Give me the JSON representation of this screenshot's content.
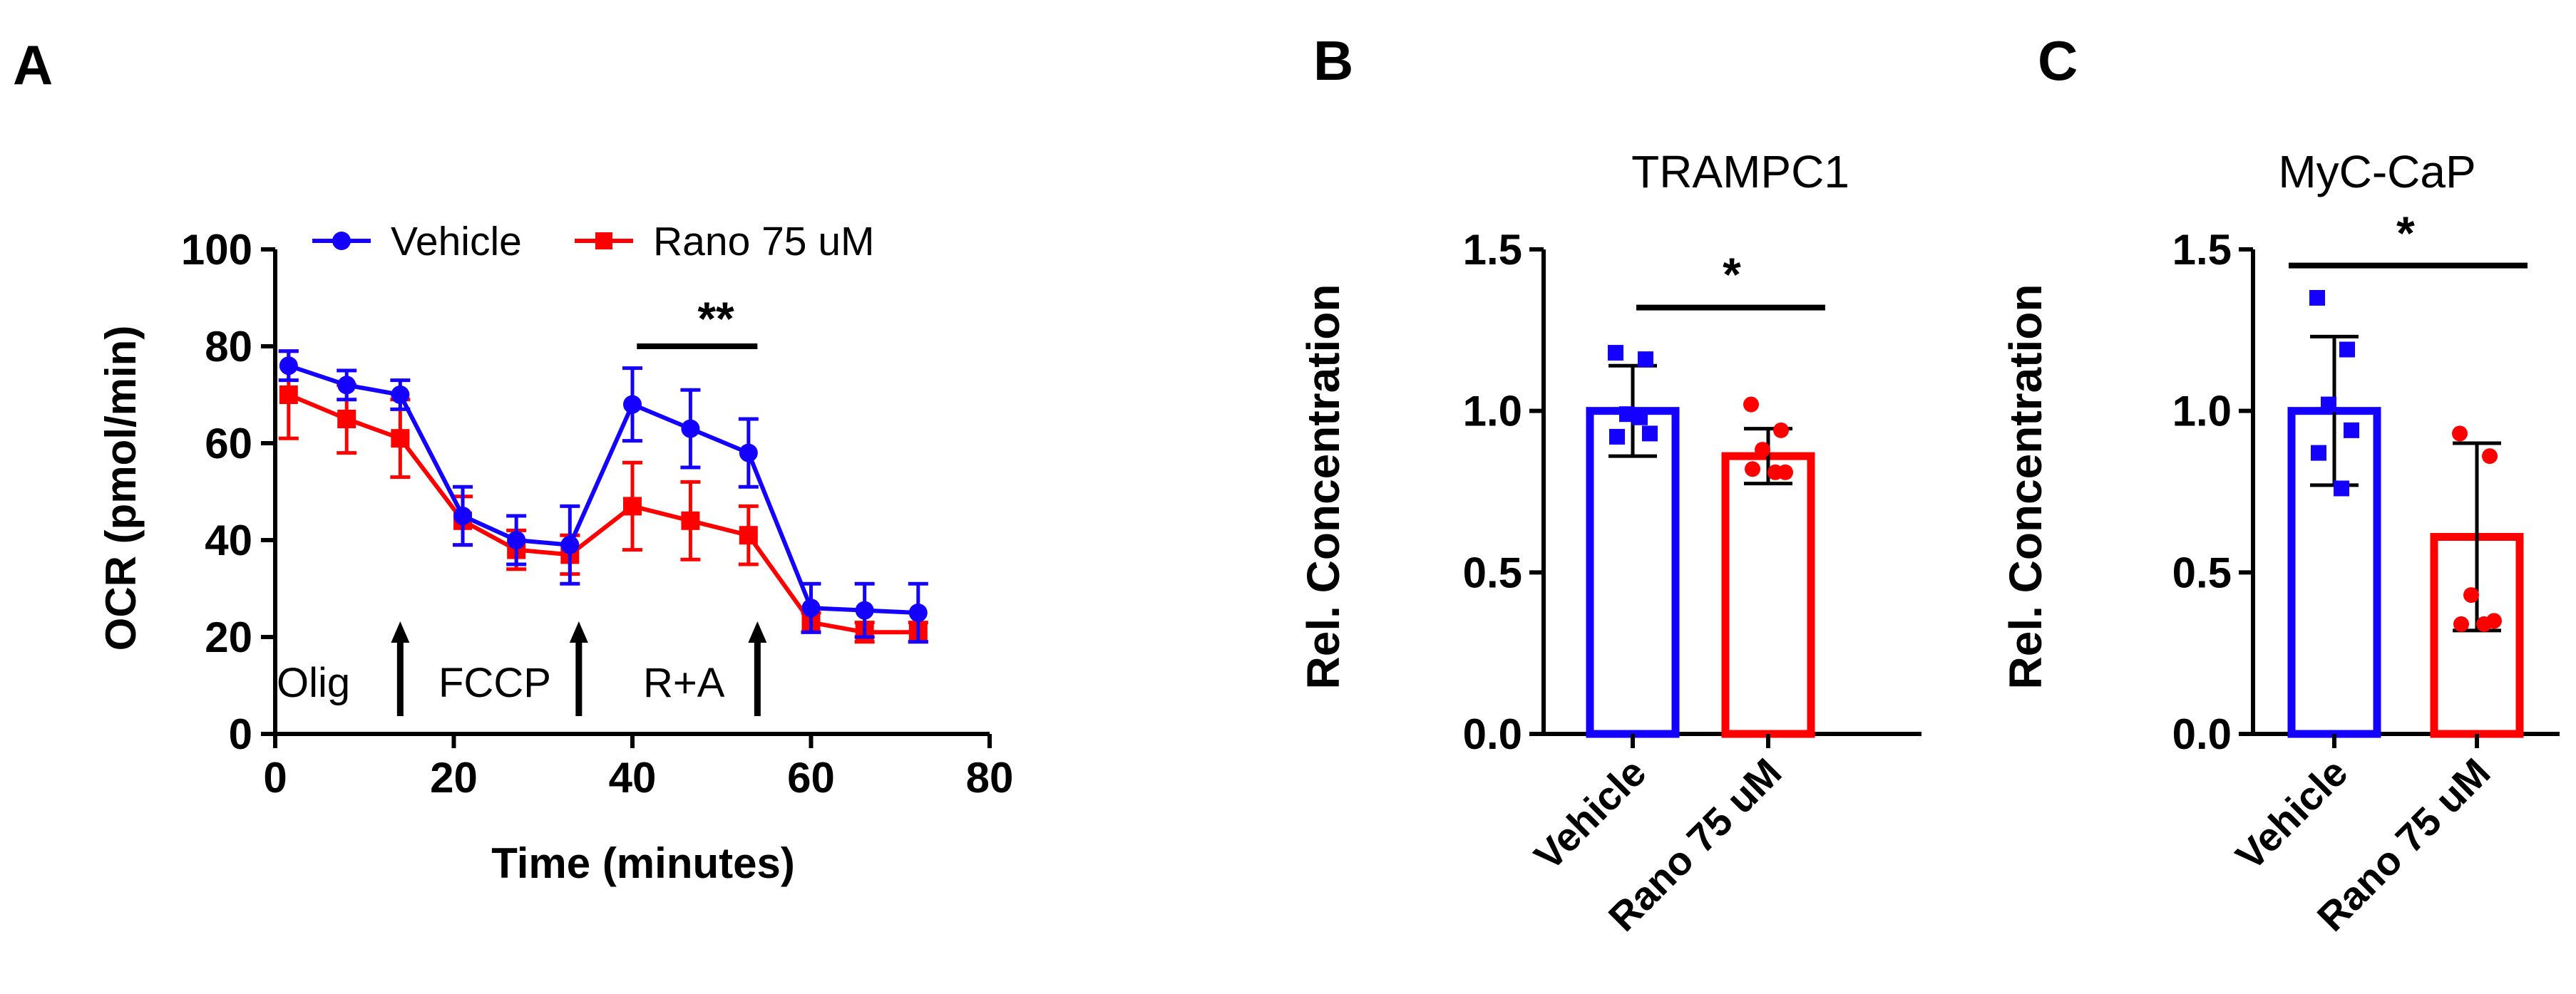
{
  "panels": {
    "a": {
      "letter": "A"
    },
    "b": {
      "letter": "B"
    },
    "c": {
      "letter": "C"
    }
  },
  "colors": {
    "vehicle": "#1400ff",
    "rano": "#ff0000",
    "axis": "#000000"
  },
  "chart_data": [
    {
      "id": "A",
      "type": "line",
      "xlabel": "Time (minutes)",
      "ylabel": "OCR (pmol/min)",
      "xlim": [
        0,
        80
      ],
      "ylim": [
        0,
        100
      ],
      "xticks": [
        "0",
        "20",
        "40",
        "60",
        "80"
      ],
      "yticks": [
        "0",
        "20",
        "40",
        "60",
        "80",
        "100"
      ],
      "legend": "top",
      "series": [
        {
          "name": "Vehicle",
          "color": "#1400ff",
          "marker": "circle",
          "x": [
            1.5,
            8,
            14,
            21,
            27,
            33,
            40,
            46.5,
            53,
            60,
            66,
            72
          ],
          "y": [
            76,
            72,
            70,
            45,
            40,
            39,
            68,
            63,
            58,
            26,
            25.5,
            25
          ],
          "err": [
            3,
            3,
            3,
            6,
            5,
            8,
            7.5,
            8,
            7,
            5,
            5.5,
            6
          ]
        },
        {
          "name": "Rano 75 uM",
          "color": "#ff0000",
          "marker": "square",
          "x": [
            1.5,
            8,
            14,
            21,
            27,
            33,
            40,
            46.5,
            53,
            60,
            66,
            72
          ],
          "y": [
            70,
            65,
            61,
            44,
            38,
            37,
            47,
            44,
            41,
            23,
            21,
            21
          ],
          "err": [
            9,
            7,
            8,
            5,
            4,
            4,
            9,
            8,
            6,
            2,
            2,
            2
          ]
        }
      ],
      "injections": [
        {
          "label": "Olig",
          "x": 14
        },
        {
          "label": "FCCP",
          "x": 34
        },
        {
          "label": "R+A",
          "x": 54
        }
      ],
      "significance": {
        "text": "**",
        "x": [
          40.5,
          54
        ],
        "y": 80
      }
    },
    {
      "id": "B",
      "type": "bar",
      "title": "TRAMPC1",
      "ylabel": "Rel. Concentration",
      "ylim": [
        0,
        1.5
      ],
      "yticks": [
        "0.0",
        "0.5",
        "1.0",
        "1.5"
      ],
      "categories": [
        "Vehicle",
        "Rano 75 uM"
      ],
      "values": [
        1.0,
        0.86
      ],
      "errors": [
        0.14,
        0.085
      ],
      "points": [
        [
          1.18,
          1.16,
          0.99,
          0.93,
          0.92,
          0.98
        ],
        [
          1.02,
          0.94,
          0.88,
          0.81,
          0.82,
          0.81
        ]
      ],
      "significance": {
        "text": "*",
        "y": 1.32
      }
    },
    {
      "id": "C",
      "type": "bar",
      "title": "MyC-CaP",
      "ylabel": "Rel. Concentration",
      "ylim": [
        0,
        1.5
      ],
      "yticks": [
        "0.0",
        "0.5",
        "1.0",
        "1.5"
      ],
      "categories": [
        "Vehicle",
        "Rano 75 uM"
      ],
      "values": [
        1.0,
        0.61
      ],
      "errors": [
        0.23,
        0.29
      ],
      "points": [
        [
          1.35,
          1.19,
          1.02,
          0.94,
          0.87,
          0.76
        ],
        [
          0.93,
          0.86,
          0.43,
          0.35,
          0.34,
          0.34
        ]
      ],
      "significance": {
        "text": "*",
        "y": 1.45
      }
    }
  ]
}
